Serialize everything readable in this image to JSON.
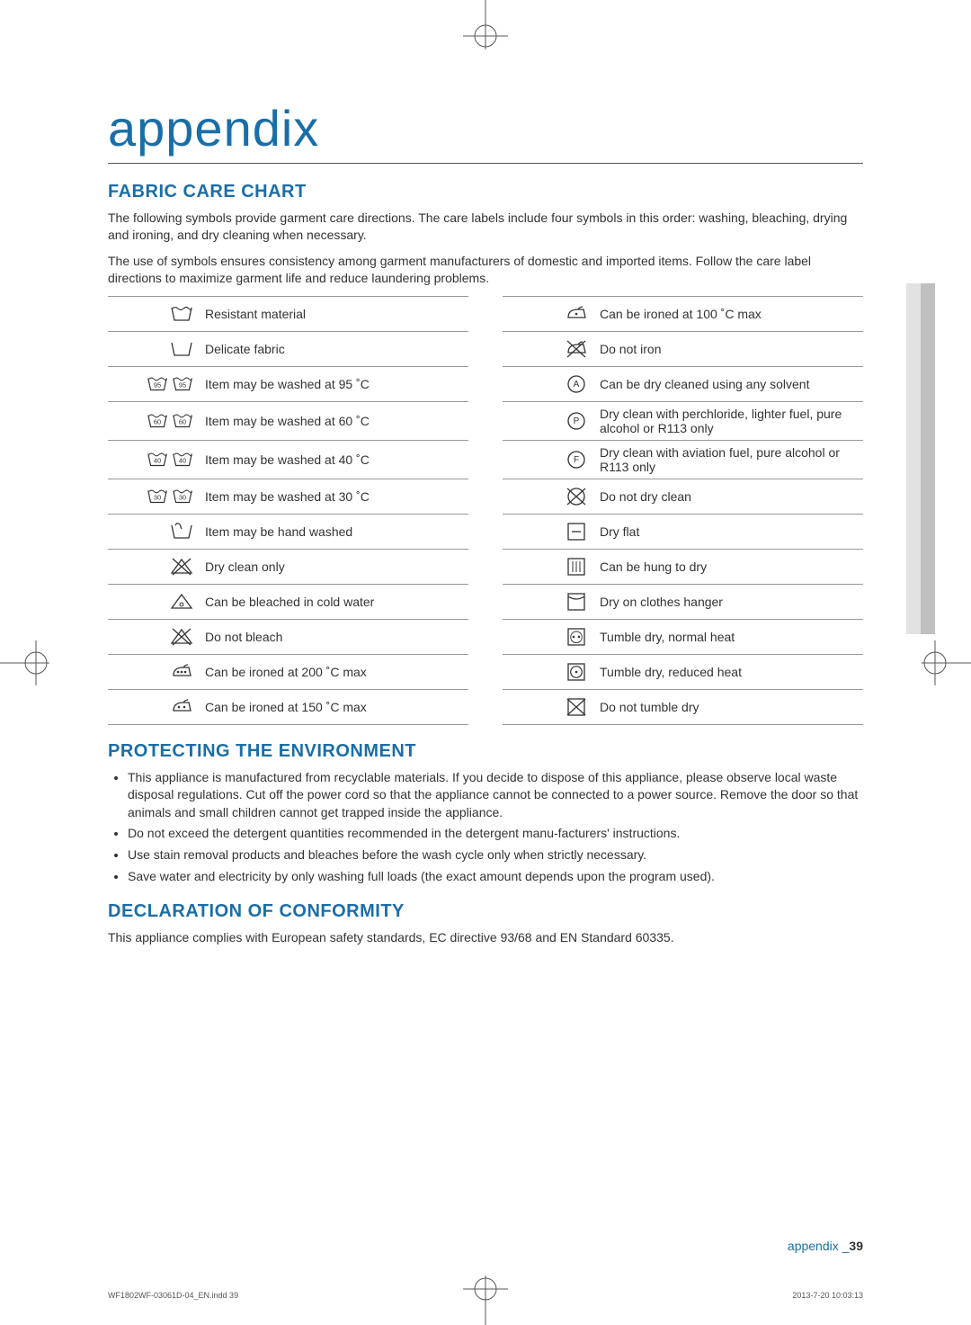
{
  "title": "appendix",
  "colors": {
    "accent": "#1a6ea8",
    "text": "#333333",
    "rule": "#999999",
    "sidebar_dark": "#bfbfbf",
    "sidebar_light": "#e2e2e2",
    "bg": "#ffffff"
  },
  "sections": {
    "fabric": {
      "heading": "FABRIC CARE CHART",
      "intro1": "The following symbols provide garment care directions. The care labels include four symbols in this order: washing, bleaching, drying and ironing, and dry cleaning when necessary.",
      "intro2": "The use of symbols ensures consistency among garment manufacturers of domestic and imported items. Follow the care label directions to maximize garment life and reduce laundering problems.",
      "rows": [
        {
          "l_icon": "tub-wave",
          "l": "Resistant material",
          "r_icon": "iron-1",
          "r": "Can be ironed at 100 ˚C max"
        },
        {
          "l_icon": "tub-plain",
          "l": "Delicate fabric",
          "r_icon": "iron-x",
          "r": "Do not iron"
        },
        {
          "l_icon": "tub-95",
          "l": "Item may be washed at 95 ˚C",
          "r_icon": "circle-a",
          "r": "Can be dry cleaned using any solvent"
        },
        {
          "l_icon": "tub-60",
          "l": "Item may be washed at 60 ˚C",
          "r_icon": "circle-p",
          "r": "Dry clean with perchloride, lighter fuel, pure alcohol or R113 only"
        },
        {
          "l_icon": "tub-40",
          "l": "Item may be washed at 40 ˚C",
          "r_icon": "circle-f",
          "r": "Dry clean with aviation fuel, pure alcohol or R113 only"
        },
        {
          "l_icon": "tub-30",
          "l": "Item may be washed at 30 ˚C",
          "r_icon": "circle-x",
          "r": "Do not dry clean"
        },
        {
          "l_icon": "hand",
          "l": "Item may be hand washed",
          "r_icon": "sq-dash",
          "r": "Dry flat"
        },
        {
          "l_icon": "tri-x",
          "l": "Dry clean only",
          "r_icon": "sq-bars",
          "r": "Can be hung to dry"
        },
        {
          "l_icon": "tri-o",
          "l": "Can be bleached in cold water",
          "r_icon": "sq-curve",
          "r": "Dry on clothes hanger"
        },
        {
          "l_icon": "tri-xx",
          "l": "Do not bleach",
          "r_icon": "sq-2dot",
          "r": "Tumble dry, normal heat"
        },
        {
          "l_icon": "iron-3",
          "l": "Can be ironed at 200 ˚C max",
          "r_icon": "sq-1dot",
          "r": "Tumble dry, reduced heat"
        },
        {
          "l_icon": "iron-2",
          "l": "Can be ironed at 150 ˚C max",
          "r_icon": "sq-x",
          "r": "Do not tumble dry"
        }
      ]
    },
    "env": {
      "heading": "PROTECTING THE ENVIRONMENT",
      "bullets": [
        "This appliance is manufactured from recyclable materials. If you decide to dispose of this appliance, please observe local waste disposal regulations. Cut off the power cord so that the appliance cannot be connected to a power source. Remove the door so that animals and small children cannot get trapped inside the appliance.",
        "Do not exceed the detergent quantities recommended in the detergent manu-facturers' instructions.",
        "Use stain removal products and bleaches before the wash cycle only when strictly necessary.",
        "Save water and electricity by only washing full loads (the exact amount depends upon the program used)."
      ]
    },
    "decl": {
      "heading": "DECLARATION OF CONFORMITY",
      "text": "This appliance complies with European safety standards, EC directive 93/68 and EN Standard 60335."
    }
  },
  "footer": {
    "label": "appendix _",
    "page": "39"
  },
  "print": {
    "left": "WF1802WF-03061D-04_EN.indd   39",
    "right": "2013-7-20   10:03:13"
  }
}
